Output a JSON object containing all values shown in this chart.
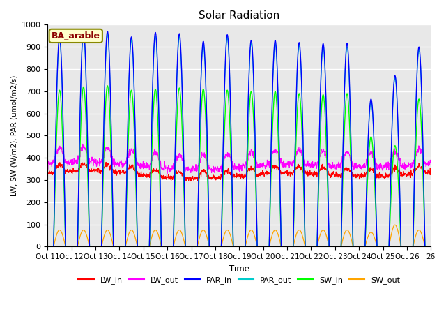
{
  "title": "Solar Radiation",
  "ylabel": "LW, SW (W/m2), PAR (umol/m2/s)",
  "xlabel": "Time",
  "n_days": 16,
  "ylim": [
    0,
    1000
  ],
  "yticks": [
    0,
    100,
    200,
    300,
    400,
    500,
    600,
    700,
    800,
    900,
    1000
  ],
  "annotation_text": "BA_arable",
  "annotation_color": "#8B0000",
  "annotation_bg": "#FFFFCC",
  "annotation_edge": "#888800",
  "series_colors": {
    "LW_in": "#FF0000",
    "LW_out": "#FF00FF",
    "PAR_in": "#0000FF",
    "PAR_out": "#00CCCC",
    "SW_in": "#00FF00",
    "SW_out": "#FFA500"
  },
  "background_color": "#E8E8E8",
  "grid_color": "#FFFFFF",
  "x_tick_labels": [
    "Oct 11",
    "Oct 12",
    "Oct 13",
    "Oct 14",
    "Oct 15",
    "Oct 16",
    "Oct 17",
    "Oct 18",
    "Oct 19",
    "Oct 20",
    "Oct 21",
    "Oct 22",
    "Oct 23",
    "Oct 24",
    "Oct 25",
    "Oct 26"
  ],
  "par_in_peaks": [
    945,
    975,
    970,
    945,
    965,
    960,
    925,
    955,
    930,
    930,
    920,
    915,
    915,
    665,
    770,
    900
  ],
  "sw_in_peaks": [
    705,
    720,
    725,
    705,
    710,
    715,
    710,
    705,
    700,
    700,
    690,
    685,
    690,
    495,
    455,
    665
  ],
  "sw_out_peaks": [
    75,
    75,
    75,
    75,
    75,
    75,
    75,
    75,
    75,
    75,
    75,
    75,
    75,
    65,
    98,
    75
  ],
  "lw_in_base": 340,
  "lw_out_base": 370
}
